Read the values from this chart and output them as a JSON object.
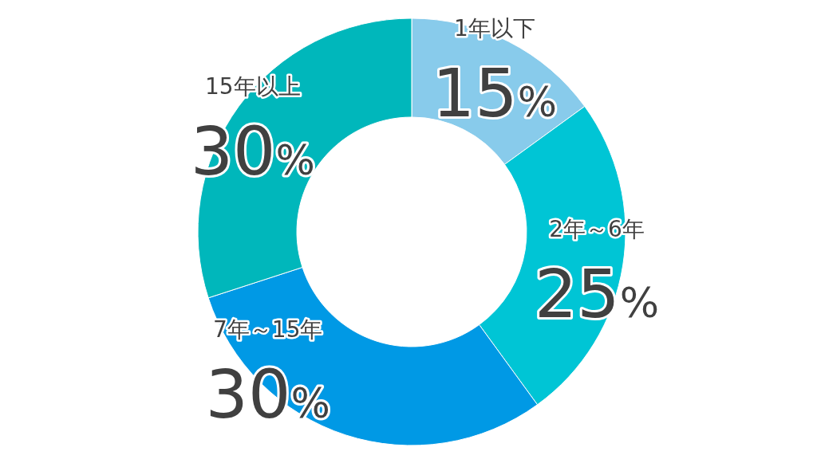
{
  "chart_data": {
    "type": "donut",
    "categories": [
      "1年以下",
      "2年～6年",
      "7年～15年",
      "15年以上"
    ],
    "values": [
      15,
      25,
      30,
      30
    ],
    "colors": [
      "#88cbeb",
      "#00c5d5",
      "#0099e5",
      "#00b7bb"
    ],
    "value_labels": [
      "15%",
      "25%",
      "30%",
      "30%"
    ]
  }
}
